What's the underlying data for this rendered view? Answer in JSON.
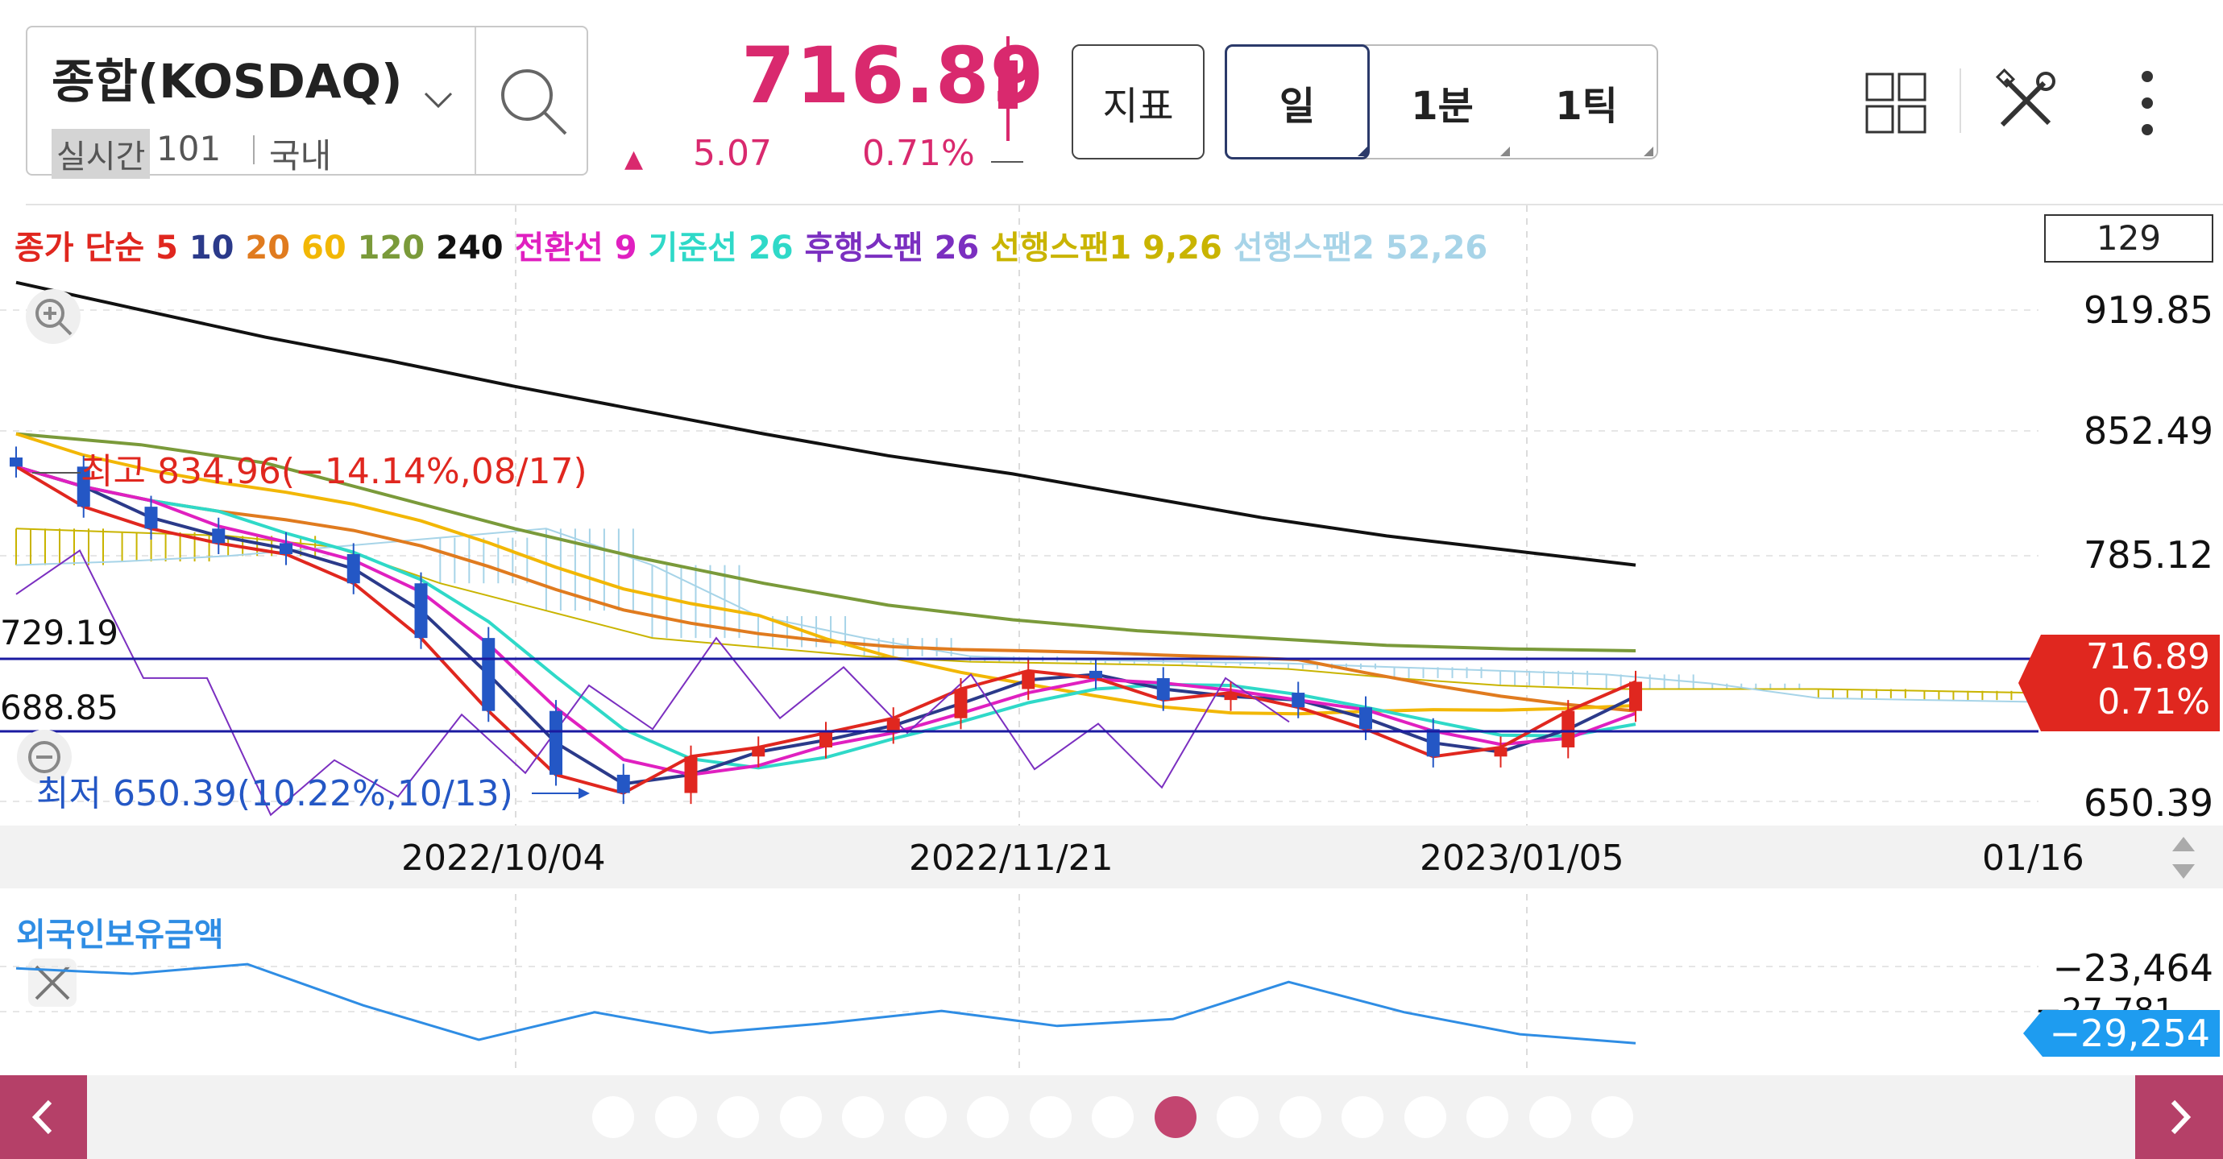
{
  "header": {
    "symbol": "종합(KOSDAQ)",
    "realtime_badge": "실시간",
    "realtime_count": "101",
    "region": "국내",
    "price": "716.89",
    "change": "5.07",
    "change_pct": "0.71%",
    "indicator_button": "지표",
    "periods": [
      "일",
      "1분",
      "1틱"
    ],
    "active_period": "일"
  },
  "legend": [
    {
      "text": "종가 단순 ",
      "color": "#e0271f"
    },
    {
      "text": "5 ",
      "color": "#e0271f"
    },
    {
      "text": "10 ",
      "color": "#2b3a8a"
    },
    {
      "text": "20 ",
      "color": "#e07b1f"
    },
    {
      "text": "60 ",
      "color": "#f2b705"
    },
    {
      "text": "120 ",
      "color": "#7a9a3a"
    },
    {
      "text": "240 ",
      "color": "#111111"
    },
    {
      "text": "전환선 9 ",
      "color": "#e020c0"
    },
    {
      "text": "기준선 26 ",
      "color": "#2fd9c8"
    },
    {
      "text": "후행스팬 26 ",
      "color": "#7b2fc0"
    },
    {
      "text": "선행스팬1 9,26 ",
      "color": "#c9b400"
    },
    {
      "text": "선행스팬2 52,26",
      "color": "#a7d4e8"
    }
  ],
  "count_box": "129",
  "annotations": {
    "high": "최고 834.96(−14.14%,08/17)",
    "low": "최저 650.39(10.22%,10/13)",
    "level_upper": "729.19",
    "level_lower": "688.85"
  },
  "y_axis_labels": [
    "919.85",
    "852.49",
    "785.12",
    "650.39"
  ],
  "price_tag": {
    "value": "716.89",
    "pct": "0.71%"
  },
  "x_axis_labels": [
    "2022/10/04",
    "2022/11/21",
    "2023/01/05",
    "01/16"
  ],
  "sub_panel": {
    "title": "외국인보유금액",
    "y_label": "−23,464",
    "y_label_partial": "−27,781",
    "tag": "−29,254"
  },
  "pager": {
    "count": 17,
    "active_index": 9
  },
  "colors": {
    "accent": "#d9296e",
    "up": "#e0271f",
    "down": "#2457c5",
    "sub_line": "#2f8de4"
  },
  "chart_data": {
    "type": "line",
    "y_range": [
      650.39,
      919.85
    ],
    "reference_lines": [
      729.19,
      688.85
    ],
    "high": 834.96,
    "low": 650.39,
    "last": 716.89,
    "ma240": [
      935,
      920,
      905,
      892,
      878,
      865,
      852,
      840,
      830,
      818,
      806,
      796,
      788,
      780
    ],
    "ma120": [
      852,
      846,
      836,
      818,
      800,
      784,
      770,
      758,
      750,
      744,
      740,
      736,
      734,
      733
    ],
    "close": [
      834,
      812,
      800,
      792,
      786,
      770,
      740,
      700,
      665,
      655,
      675,
      680,
      688,
      696,
      712,
      722,
      718,
      706,
      710,
      702,
      690,
      675,
      680,
      700,
      716
    ],
    "sub_series": [
      -23800,
      -24200,
      -23500,
      -26500,
      -29000,
      -27000,
      -28500,
      -27800,
      -26900,
      -28000,
      -27500,
      -24800,
      -27000,
      -28600,
      -29254
    ]
  }
}
